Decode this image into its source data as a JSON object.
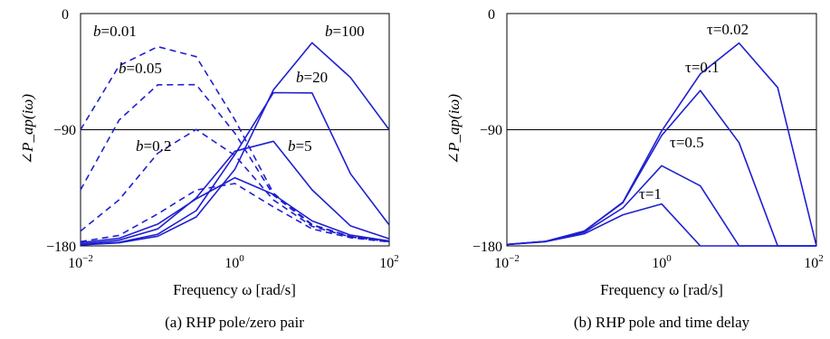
{
  "chart_data": [
    {
      "type": "line",
      "title": "",
      "caption": "(a) RHP pole/zero pair",
      "xlabel": "Frequency ω [rad/s]",
      "ylabel": "∠P_ap(iω)",
      "x_scale": "log",
      "xlim": [
        0.01,
        100
      ],
      "ylim": [
        -180,
        0
      ],
      "xticks": [
        0.01,
        1,
        100
      ],
      "xtick_labels": [
        {
          "base": "10",
          "exp": "−2"
        },
        {
          "base": "10",
          "exp": "0"
        },
        {
          "base": "10",
          "exp": "2"
        }
      ],
      "yticks": [
        0,
        -90,
        -180
      ],
      "ytick_labels": [
        "0",
        "−90",
        "−180"
      ],
      "reference_line": -90,
      "x": [
        0.01,
        0.0316,
        0.1,
        0.316,
        1,
        3.16,
        10,
        31.6,
        100
      ],
      "series": [
        {
          "label_prefix": "b",
          "label_value": "=0.01",
          "style": "dashed",
          "values": [
            -90.0,
            -40.4,
            -25.6,
            -33.4,
            -82.2,
            -139.2,
            -163.5,
            -172.7,
            -176.6
          ]
        },
        {
          "label_prefix": "b",
          "label_value": "=0.05",
          "style": "dashed",
          "values": [
            -136.6,
            -82.5,
            -55.2,
            -55.1,
            -92.7,
            -140.7,
            -163.9,
            -172.9,
            -176.6
          ]
        },
        {
          "label_prefix": "b",
          "label_value": "=0.2",
          "style": "dashed",
          "values": [
            -168.5,
            -144.3,
            -108.2,
            -89.8,
            -109.9,
            -144.4,
            -164.9,
            -173.1,
            -176.7
          ]
        },
        {
          "label_prefix": "b",
          "label_value": "",
          "style": "dashed",
          "values": [
            -176.7,
            -171.9,
            -155.2,
            -136.7,
            -131.7,
            -149.8,
            -166.8,
            -173.7,
            -176.9
          ]
        },
        {
          "label_prefix": "",
          "label_value": "",
          "style": "solid",
          "values": [
            -177.5,
            -174.1,
            -163.1,
            -143.6,
            -127.2,
            -140.1,
            -160.7,
            -171.7,
            -176.2
          ]
        },
        {
          "label_prefix": "b",
          "label_value": "=5",
          "style": "solid",
          "values": [
            -178.6,
            -175.6,
            -166.8,
            -142.8,
            -106.7,
            -99.0,
            -136.6,
            -164.5,
            -174.5
          ]
        },
        {
          "label_prefix": "b",
          "label_value": "=20",
          "style": "solid",
          "values": [
            -179.1,
            -177.2,
            -171.0,
            -152.7,
            -109.1,
            -61.3,
            -61.5,
            -124.2,
            -163.8
          ]
        },
        {
          "label_prefix": "b",
          "label_value": "=100",
          "style": "solid",
          "values": [
            -179.2,
            -177.6,
            -172.5,
            -157.6,
            -120.7,
            -59.1,
            -22.6,
            -49.6,
            -90.0
          ]
        }
      ]
    },
    {
      "type": "line",
      "title": "",
      "caption": "(b) RHP pole and time delay",
      "xlabel": "Frequency ω [rad/s]",
      "ylabel": "∠P_ap(iω)",
      "x_scale": "log",
      "xlim": [
        0.01,
        100
      ],
      "ylim": [
        -180,
        0
      ],
      "xticks": [
        0.01,
        1,
        100
      ],
      "xtick_labels": [
        {
          "base": "10",
          "exp": "−2"
        },
        {
          "base": "10",
          "exp": "0"
        },
        {
          "base": "10",
          "exp": "2"
        }
      ],
      "yticks": [
        0,
        -90,
        -180
      ],
      "ytick_labels": [
        "0",
        "−90",
        "−180"
      ],
      "reference_line": -90,
      "x": [
        0.01,
        0.0316,
        0.1,
        0.316,
        1,
        3.16,
        10,
        31.6,
        100
      ],
      "series": [
        {
          "label": "τ=0.02",
          "style": "solid",
          "values": [
            -178.9,
            -176.5,
            -168.6,
            -146.1,
            -91.0,
            -46.8,
            -22.8,
            -57.3,
            -180
          ]
        },
        {
          "label": "τ=0.1",
          "style": "solid",
          "values": [
            -178.9,
            -176.5,
            -168.6,
            -146.5,
            -94.5,
            -59.6,
            -100.0,
            -180,
            -180
          ]
        },
        {
          "label": "τ=0.5",
          "style": "solid",
          "values": [
            -178.9,
            -176.6,
            -169.5,
            -150.6,
            -117.9,
            -133.5,
            -180,
            -180,
            -180
          ]
        },
        {
          "label": "τ=1",
          "style": "solid",
          "values": [
            -178.9,
            -176.8,
            -170.6,
            -155.9,
            -147.5,
            -180,
            -180,
            -180,
            -180
          ]
        }
      ]
    }
  ]
}
